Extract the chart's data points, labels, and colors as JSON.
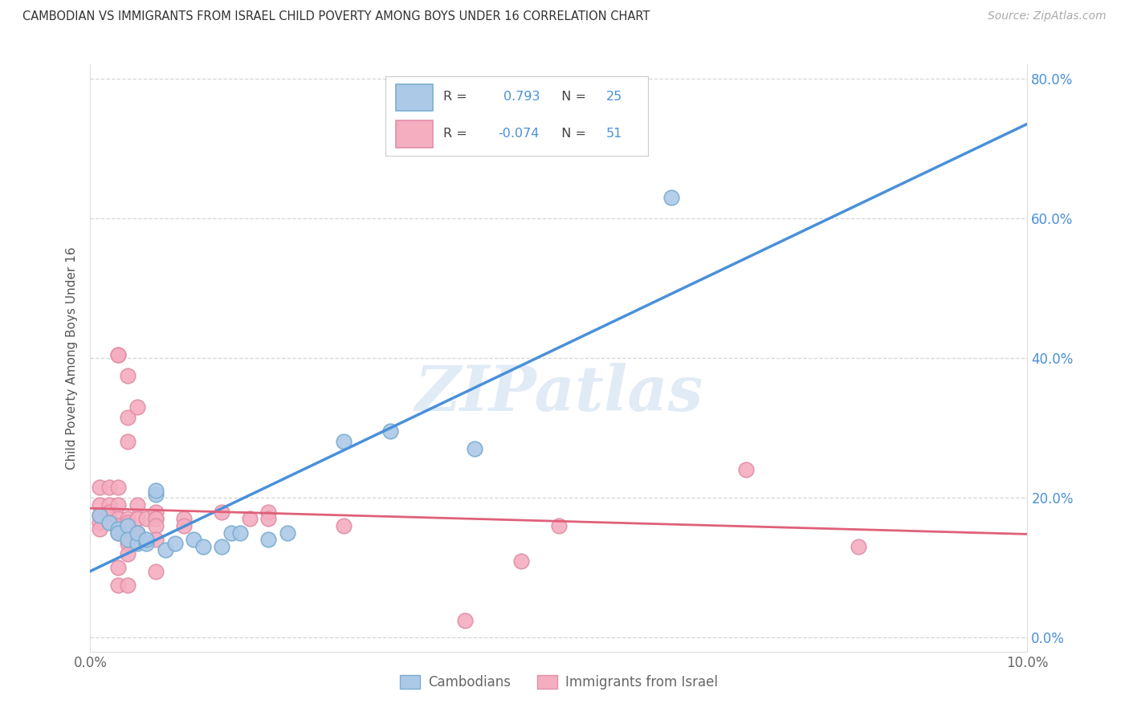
{
  "title": "CAMBODIAN VS IMMIGRANTS FROM ISRAEL CHILD POVERTY AMONG BOYS UNDER 16 CORRELATION CHART",
  "source": "Source: ZipAtlas.com",
  "ylabel": "Child Poverty Among Boys Under 16",
  "ylabel_right_ticks": [
    "0.0%",
    "20.0%",
    "40.0%",
    "60.0%",
    "80.0%"
  ],
  "xlabel_ticks": [
    "0.0%",
    "10.0%"
  ],
  "watermark": "ZIPatlas",
  "legend_label1": "Cambodians",
  "legend_label2": "Immigrants from Israel",
  "color_cambodian": "#adc9e8",
  "color_israel": "#f5adc0",
  "color_cambodian_line": "#4a90d9",
  "color_israel_line": "#e0607a",
  "color_cambodian_edge": "#7aadd0",
  "color_israel_edge": "#e090a8",
  "xlim": [
    0.0,
    0.1
  ],
  "ylim": [
    -0.02,
    0.82
  ],
  "yticks": [
    0.0,
    0.2,
    0.4,
    0.6,
    0.8
  ],
  "cambodian_scatter": [
    [
      0.001,
      0.175
    ],
    [
      0.002,
      0.165
    ],
    [
      0.003,
      0.155
    ],
    [
      0.003,
      0.15
    ],
    [
      0.004,
      0.16
    ],
    [
      0.004,
      0.14
    ],
    [
      0.005,
      0.135
    ],
    [
      0.005,
      0.15
    ],
    [
      0.006,
      0.135
    ],
    [
      0.006,
      0.14
    ],
    [
      0.007,
      0.205
    ],
    [
      0.007,
      0.21
    ],
    [
      0.008,
      0.125
    ],
    [
      0.009,
      0.135
    ],
    [
      0.011,
      0.14
    ],
    [
      0.012,
      0.13
    ],
    [
      0.014,
      0.13
    ],
    [
      0.015,
      0.15
    ],
    [
      0.016,
      0.15
    ],
    [
      0.019,
      0.14
    ],
    [
      0.021,
      0.15
    ],
    [
      0.027,
      0.28
    ],
    [
      0.032,
      0.295
    ],
    [
      0.041,
      0.27
    ],
    [
      0.062,
      0.63
    ]
  ],
  "israel_scatter": [
    [
      0.001,
      0.215
    ],
    [
      0.001,
      0.19
    ],
    [
      0.001,
      0.175
    ],
    [
      0.001,
      0.165
    ],
    [
      0.001,
      0.155
    ],
    [
      0.002,
      0.215
    ],
    [
      0.002,
      0.19
    ],
    [
      0.002,
      0.18
    ],
    [
      0.002,
      0.165
    ],
    [
      0.003,
      0.405
    ],
    [
      0.003,
      0.405
    ],
    [
      0.003,
      0.215
    ],
    [
      0.003,
      0.19
    ],
    [
      0.003,
      0.17
    ],
    [
      0.003,
      0.16
    ],
    [
      0.003,
      0.15
    ],
    [
      0.003,
      0.1
    ],
    [
      0.003,
      0.075
    ],
    [
      0.004,
      0.375
    ],
    [
      0.004,
      0.315
    ],
    [
      0.004,
      0.28
    ],
    [
      0.004,
      0.17
    ],
    [
      0.004,
      0.165
    ],
    [
      0.004,
      0.16
    ],
    [
      0.004,
      0.135
    ],
    [
      0.004,
      0.12
    ],
    [
      0.004,
      0.075
    ],
    [
      0.005,
      0.33
    ],
    [
      0.005,
      0.19
    ],
    [
      0.005,
      0.17
    ],
    [
      0.005,
      0.15
    ],
    [
      0.005,
      0.145
    ],
    [
      0.006,
      0.17
    ],
    [
      0.007,
      0.18
    ],
    [
      0.007,
      0.17
    ],
    [
      0.007,
      0.17
    ],
    [
      0.007,
      0.16
    ],
    [
      0.007,
      0.14
    ],
    [
      0.007,
      0.095
    ],
    [
      0.01,
      0.17
    ],
    [
      0.01,
      0.16
    ],
    [
      0.014,
      0.18
    ],
    [
      0.017,
      0.17
    ],
    [
      0.019,
      0.18
    ],
    [
      0.019,
      0.17
    ],
    [
      0.027,
      0.16
    ],
    [
      0.04,
      0.025
    ],
    [
      0.046,
      0.11
    ],
    [
      0.05,
      0.16
    ],
    [
      0.07,
      0.24
    ],
    [
      0.082,
      0.13
    ]
  ],
  "cambodian_line_solid": [
    [
      0.0,
      0.095
    ],
    [
      0.1,
      0.735
    ]
  ],
  "cambodian_line_dash": [
    [
      0.1,
      0.735
    ],
    [
      0.135,
      0.96
    ]
  ],
  "israel_line": [
    [
      0.0,
      0.185
    ],
    [
      0.1,
      0.148
    ]
  ],
  "bg_color": "#ffffff",
  "grid_color": "#cccccc",
  "scatter_size": 180
}
